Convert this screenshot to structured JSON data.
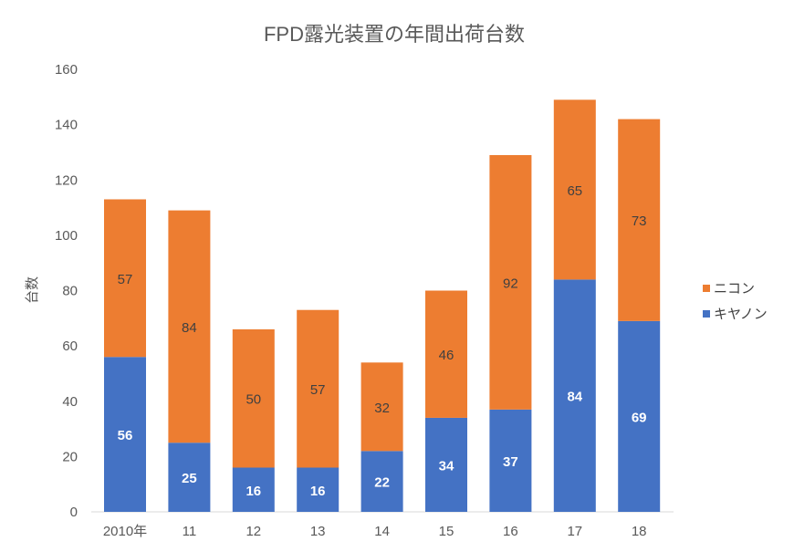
{
  "chart_data": {
    "type": "bar",
    "stacked": true,
    "title": "FPD露光装置の年間出荷台数",
    "xlabel": "",
    "ylabel": "台数",
    "ylim": [
      0,
      160
    ],
    "yticks": [
      0,
      20,
      40,
      60,
      80,
      100,
      120,
      140,
      160
    ],
    "ytick_labels": [
      "0",
      "20",
      "40",
      "60",
      "80",
      "100",
      "120",
      "140",
      "160"
    ],
    "grid": false,
    "categories": [
      "2010年",
      "11",
      "12",
      "13",
      "14",
      "15",
      "16",
      "17",
      "18"
    ],
    "series": [
      {
        "name": "キヤノン",
        "color": "#4472C4",
        "values": [
          56,
          25,
          16,
          16,
          22,
          34,
          37,
          84,
          69
        ],
        "labels": [
          "56",
          "25",
          "16",
          "16",
          "22",
          "34",
          "37",
          "84",
          "69"
        ]
      },
      {
        "name": "ニコン",
        "color": "#ED7D31",
        "values": [
          57,
          84,
          50,
          57,
          32,
          46,
          92,
          65,
          73
        ],
        "labels": [
          "57",
          "84",
          "50",
          "57",
          "32",
          "46",
          "92",
          "65",
          "73"
        ]
      }
    ],
    "legend": {
      "position": "right",
      "order": [
        "ニコン",
        "キヤノン"
      ]
    }
  }
}
